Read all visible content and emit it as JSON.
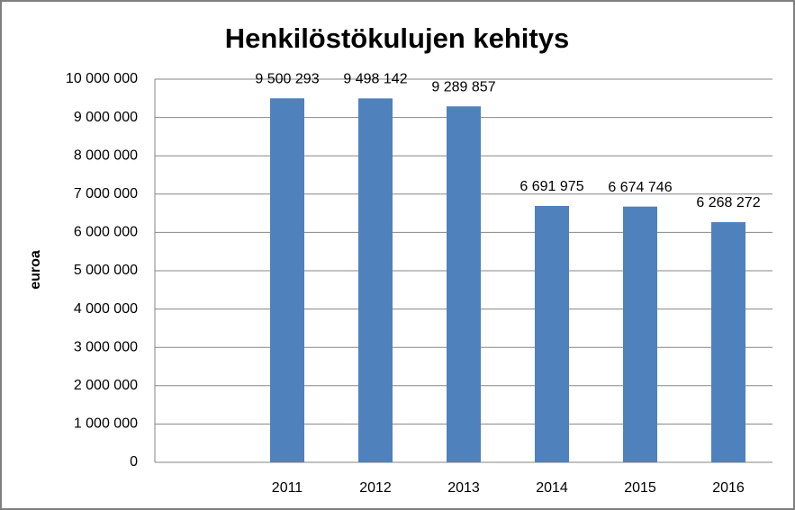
{
  "chart_data": {
    "type": "bar",
    "title": "Henkilöstökulujen kehitys",
    "y_label": "euroa",
    "categories": [
      null,
      "2011",
      "2012",
      "2013",
      "2014",
      "2015",
      "2016"
    ],
    "values": [
      null,
      9500293,
      9498142,
      9289857,
      6691975,
      6674746,
      6268272
    ],
    "value_labels": [
      null,
      "9 500 293",
      "9 498 142",
      "9 289 857",
      "6 691 975",
      "6 674 746",
      "6 268 272"
    ],
    "color": "#4f81bd",
    "ylim": [
      0,
      10000000
    ],
    "yticks": [
      0,
      {
        "value": 1000000,
        "label": "1 000 000"
      },
      {
        "value": 2000000,
        "label": "2 000 000"
      },
      {
        "value": 3000000,
        "label": "3 000 000"
      },
      {
        "value": 4000000,
        "label": "4 000 000"
      },
      {
        "value": 5000000,
        "label": "5 000 000"
      },
      {
        "value": 6000000,
        "label": "6 000 000"
      },
      {
        "value": 7000000,
        "label": "7 000 000"
      },
      {
        "value": 8000000,
        "label": "8 000 000"
      },
      {
        "value": 9000000,
        "label": "9 000 000"
      },
      {
        "value": 10000000,
        "label": "10 000 000"
      }
    ],
    "grid": true
  }
}
